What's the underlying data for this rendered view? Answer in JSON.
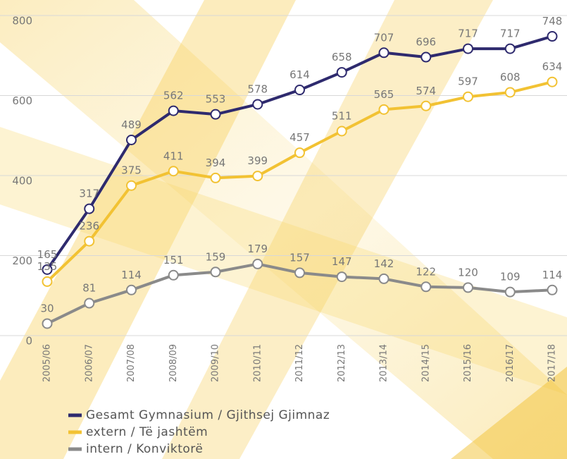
{
  "chart_data": {
    "type": "line",
    "x": [
      "2005/06",
      "2006/07",
      "2007/08",
      "2008/09",
      "2009/10",
      "2010/11",
      "2011/12",
      "2012/13",
      "2013/14",
      "2014/15",
      "2015/16",
      "2016/17",
      "2017/18"
    ],
    "series": [
      {
        "name": "Gesamt Gymnasium / Gjithsej Gjimnaz",
        "color": "#2e2a6e",
        "values": [
          165,
          317,
          489,
          562,
          553,
          578,
          614,
          658,
          707,
          696,
          717,
          717,
          748
        ]
      },
      {
        "name": "extern / Të jashtëm",
        "color": "#f2c233",
        "values": [
          135,
          236,
          375,
          411,
          394,
          399,
          457,
          511,
          565,
          574,
          597,
          608,
          634
        ]
      },
      {
        "name": "intern / Konviktorë",
        "color": "#8a8a8a",
        "values": [
          30,
          81,
          114,
          151,
          159,
          179,
          157,
          147,
          142,
          122,
          120,
          109,
          114
        ]
      }
    ],
    "ylim": [
      0,
      800
    ],
    "yticks": [
      0,
      200,
      400,
      600,
      800
    ],
    "grid": true
  }
}
